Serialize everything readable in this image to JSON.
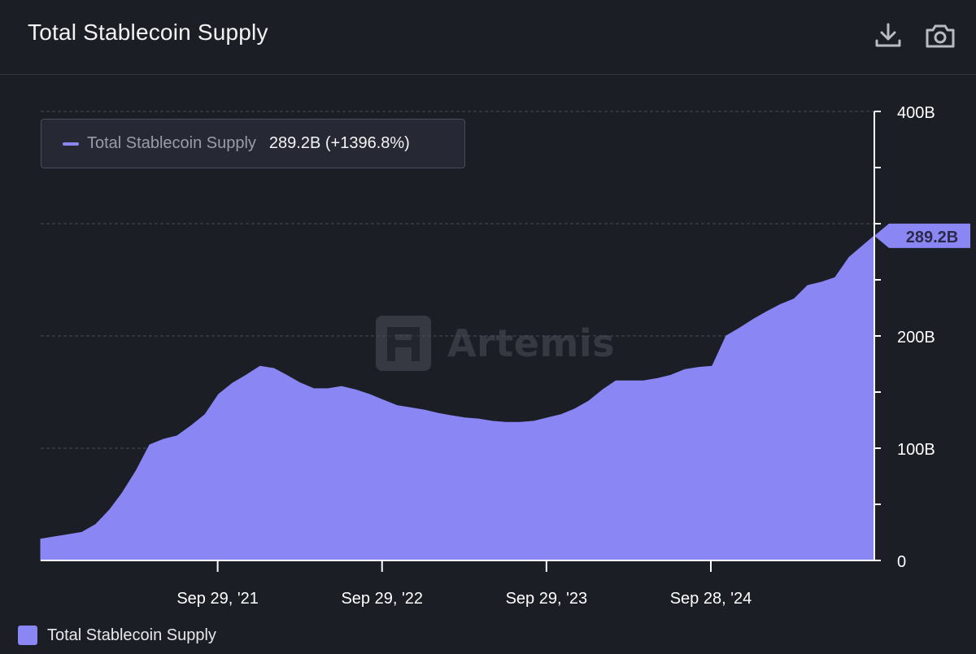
{
  "header": {
    "title": "Total Stablecoin Supply",
    "download_icon": "download-icon",
    "camera_icon": "camera-icon"
  },
  "tooltip": {
    "series_name": "Total Stablecoin Supply",
    "value_text": "289.2B (+1396.8%)"
  },
  "watermark": {
    "text": "Artemis",
    "logo_icon": "artemis-logo-icon"
  },
  "legend": {
    "label": "Total Stablecoin Supply"
  },
  "colors": {
    "background": "#1c1e26",
    "series_fill": "#8a86f3",
    "grid": "#4a4c56",
    "axis": "#ffffff"
  },
  "chart_data": {
    "type": "area",
    "title": "Total Stablecoin Supply",
    "xlabel": "",
    "ylabel": "",
    "ylim": [
      0,
      400
    ],
    "y_unit": "B",
    "y_ticks": [
      "0",
      "100B",
      "200B",
      "",
      "400B"
    ],
    "x_ticks": [
      "Sep 29, '21",
      "Sep 29, '22",
      "Sep 29, '23",
      "Sep 28, '24"
    ],
    "x_tick_dates": [
      "2021-09-29",
      "2022-09-29",
      "2023-09-29",
      "2024-09-28"
    ],
    "x_range": [
      "2020-09-01",
      "2025-09-26"
    ],
    "grid": true,
    "legend_position": "bottom-left",
    "last_value_label": "289.2B",
    "series": [
      {
        "name": "Total Stablecoin Supply",
        "x": [
          "2020-09-01",
          "2020-10-01",
          "2020-11-01",
          "2020-12-01",
          "2021-01-01",
          "2021-02-01",
          "2021-03-01",
          "2021-04-01",
          "2021-05-01",
          "2021-06-01",
          "2021-07-01",
          "2021-08-01",
          "2021-09-01",
          "2021-10-01",
          "2021-11-01",
          "2021-12-01",
          "2022-01-01",
          "2022-02-01",
          "2022-03-01",
          "2022-04-01",
          "2022-05-01",
          "2022-06-01",
          "2022-07-01",
          "2022-08-01",
          "2022-09-01",
          "2022-10-01",
          "2022-11-01",
          "2022-12-01",
          "2023-01-01",
          "2023-02-01",
          "2023-03-01",
          "2023-04-01",
          "2023-05-01",
          "2023-06-01",
          "2023-07-01",
          "2023-08-01",
          "2023-09-01",
          "2023-10-01",
          "2023-11-01",
          "2023-12-01",
          "2024-01-01",
          "2024-02-01",
          "2024-03-01",
          "2024-04-01",
          "2024-05-01",
          "2024-06-01",
          "2024-07-01",
          "2024-08-01",
          "2024-09-01",
          "2024-10-01",
          "2024-11-01",
          "2024-12-01",
          "2025-01-01",
          "2025-02-01",
          "2025-03-01",
          "2025-04-01",
          "2025-05-01",
          "2025-06-01",
          "2025-07-01",
          "2025-08-01",
          "2025-09-26"
        ],
        "y": [
          19,
          21,
          23,
          25,
          32,
          45,
          60,
          80,
          103,
          108,
          111,
          120,
          130,
          148,
          158,
          165,
          173,
          171,
          165,
          158,
          153,
          153,
          155,
          152,
          148,
          143,
          138,
          136,
          134,
          131,
          129,
          127,
          126,
          124,
          123,
          123,
          124,
          127,
          130,
          135,
          142,
          152,
          160,
          160,
          160,
          162,
          165,
          170,
          172,
          173,
          200,
          207,
          215,
          222,
          228,
          233,
          245,
          248,
          252,
          270,
          289.2
        ]
      }
    ]
  }
}
